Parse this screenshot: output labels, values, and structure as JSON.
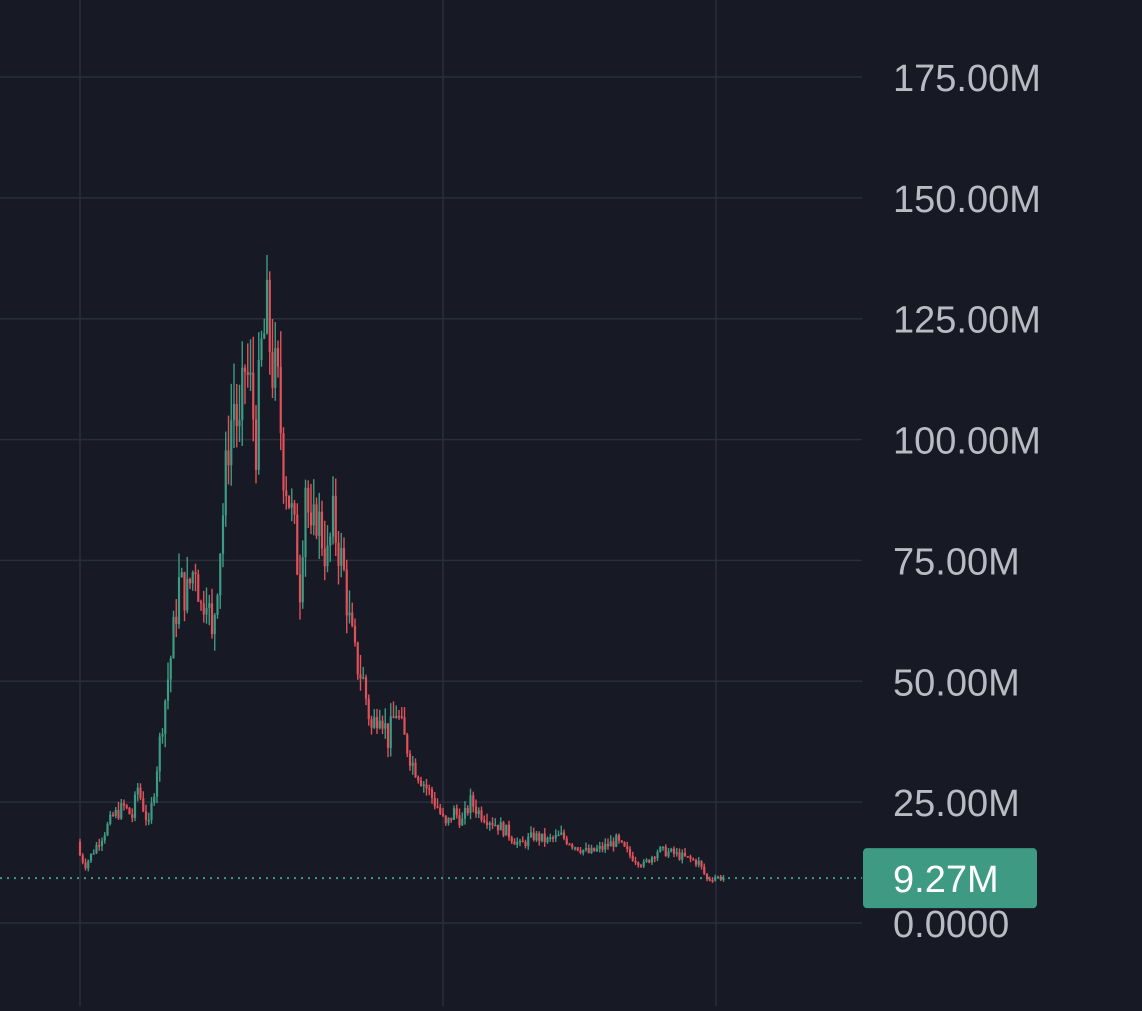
{
  "colors": {
    "background": "#171a25",
    "grid": "#2a2e3b",
    "up": "#3e9a82",
    "down": "#e0515a",
    "axis_text": "#b8bbc3",
    "last_label_bg": "#3e9a82",
    "last_label_text": "#ffffff",
    "price_line": "#3e9a82"
  },
  "chart_data": {
    "type": "candlestick",
    "ylim": [
      0,
      187500000
    ],
    "y_ticks": [
      {
        "value": 175000000,
        "label": "175.00M"
      },
      {
        "value": 150000000,
        "label": "150.00M"
      },
      {
        "value": 125000000,
        "label": "125.00M"
      },
      {
        "value": 100000000,
        "label": "100.00M"
      },
      {
        "value": 75000000,
        "label": "75.00M"
      },
      {
        "value": 50000000,
        "label": "50.00M"
      },
      {
        "value": 25000000,
        "label": "25.00M"
      },
      {
        "value": 0,
        "label": "0.0000"
      }
    ],
    "last_value": 9270000,
    "last_value_label": "9.27M",
    "vertical_grid_count": 3,
    "grid": true,
    "close_path": [
      [
        0,
        14000000
      ],
      [
        2,
        12000000
      ],
      [
        5,
        15000000
      ],
      [
        8,
        18000000
      ],
      [
        12,
        22000000
      ],
      [
        16,
        24000000
      ],
      [
        19,
        22000000
      ],
      [
        21,
        28000000
      ],
      [
        23,
        24000000
      ],
      [
        25,
        20000000
      ],
      [
        27,
        28000000
      ],
      [
        30,
        42000000
      ],
      [
        33,
        55000000
      ],
      [
        36,
        70000000
      ],
      [
        39,
        68000000
      ],
      [
        42,
        75000000
      ],
      [
        44,
        65000000
      ],
      [
        46,
        70000000
      ],
      [
        48,
        58000000
      ],
      [
        50,
        72000000
      ],
      [
        52,
        85000000
      ],
      [
        54,
        100000000
      ],
      [
        56,
        108000000
      ],
      [
        58,
        100000000
      ],
      [
        60,
        115000000
      ],
      [
        62,
        110000000
      ],
      [
        64,
        100000000
      ],
      [
        66,
        118000000
      ],
      [
        68,
        125000000
      ],
      [
        70,
        115000000
      ],
      [
        72,
        110000000
      ],
      [
        74,
        95000000
      ],
      [
        76,
        88000000
      ],
      [
        78,
        80000000
      ],
      [
        80,
        70000000
      ],
      [
        82,
        92000000
      ],
      [
        84,
        78000000
      ],
      [
        86,
        85000000
      ],
      [
        88,
        80000000
      ],
      [
        90,
        75000000
      ],
      [
        92,
        83000000
      ],
      [
        94,
        78000000
      ],
      [
        96,
        72000000
      ],
      [
        98,
        62000000
      ],
      [
        100,
        55000000
      ],
      [
        103,
        50000000
      ],
      [
        106,
        40000000
      ],
      [
        109,
        45000000
      ],
      [
        112,
        38000000
      ],
      [
        115,
        44000000
      ],
      [
        118,
        38000000
      ],
      [
        121,
        33000000
      ],
      [
        124,
        30000000
      ],
      [
        127,
        27000000
      ],
      [
        130,
        24000000
      ],
      [
        133,
        20000000
      ],
      [
        136,
        23000000
      ],
      [
        139,
        21000000
      ],
      [
        142,
        25000000
      ],
      [
        145,
        23000000
      ],
      [
        150,
        21000000
      ],
      [
        155,
        19000000
      ],
      [
        160,
        16000000
      ],
      [
        165,
        18000000
      ],
      [
        170,
        17000000
      ],
      [
        175,
        18000000
      ],
      [
        180,
        16000000
      ],
      [
        185,
        14500000
      ],
      [
        190,
        15500000
      ],
      [
        195,
        17000000
      ],
      [
        200,
        14000000
      ],
      [
        205,
        12000000
      ],
      [
        210,
        15000000
      ],
      [
        215,
        14500000
      ],
      [
        220,
        13500000
      ],
      [
        225,
        12500000
      ],
      [
        228,
        9000000
      ],
      [
        231,
        9500000
      ],
      [
        234,
        9270000
      ]
    ]
  }
}
